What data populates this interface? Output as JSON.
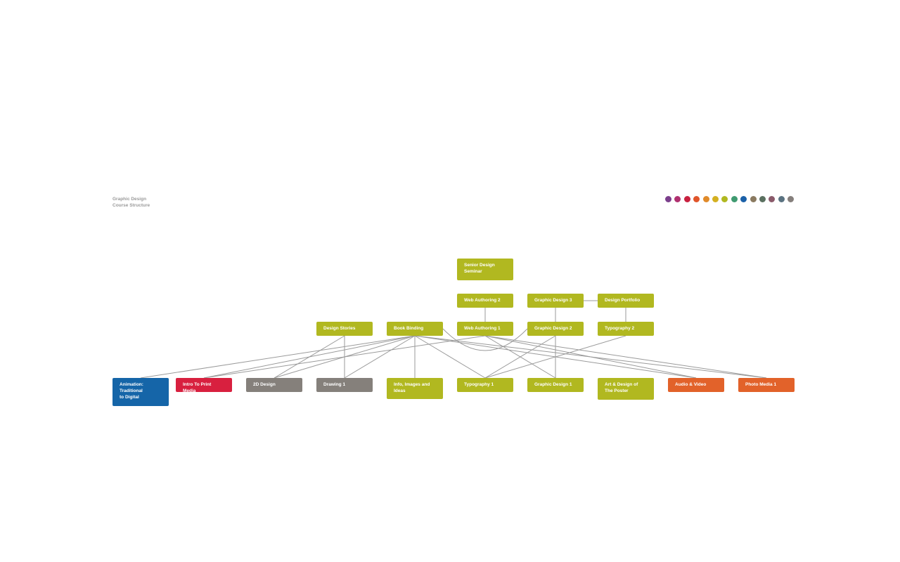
{
  "header": {
    "title_line1": "Graphic Design",
    "title_line2": "Course Structure"
  },
  "palette": [
    "#7b3f8c",
    "#b0306f",
    "#c8203f",
    "#e0552a",
    "#e08a2a",
    "#d4b020",
    "#b0b820",
    "#3f9a70",
    "#1a60a8",
    "#8a7a60",
    "#5a7060",
    "#8a5a6a",
    "#5a7280",
    "#857f7c"
  ],
  "colors": {
    "green": "#b1b820",
    "blue": "#1565a8",
    "red": "#d8203f",
    "gray": "#85807b",
    "orange": "#e2622a",
    "edge": "#9a9a9a"
  },
  "courses": {
    "senior_design_seminar": "Senior Design\nSeminar",
    "web_authoring_2": "Web Authoring 2",
    "graphic_design_3": "Graphic Design 3",
    "design_portfolio": "Design Portfolio",
    "design_stories": "Design Stories",
    "book_binding": "Book Binding",
    "web_authoring_1": "Web Authoring 1",
    "graphic_design_2": "Graphic Design 2",
    "typography_2": "Typography 2",
    "animation": "Animation:\nTraditional\nto Digital",
    "intro_print_media": "Intro To Print Media",
    "design_2d": "2D Design",
    "drawing_1": "Drawing 1",
    "info_images_ideas": "Info, Images and\nIdeas",
    "typography_1": "Typography 1",
    "graphic_design_1": "Graphic Design 1",
    "art_design_poster": "Art & Design of\nThe Poster",
    "audio_video": "Audio & Video",
    "photo_media_1": "Photo Media 1"
  },
  "edges": [
    [
      "design_stories",
      "design_2d"
    ],
    [
      "design_stories",
      "drawing_1"
    ],
    [
      "book_binding",
      "animation"
    ],
    [
      "book_binding",
      "intro_print_media"
    ],
    [
      "book_binding",
      "design_2d"
    ],
    [
      "book_binding",
      "drawing_1"
    ],
    [
      "book_binding",
      "info_images_ideas"
    ],
    [
      "book_binding",
      "typography_1"
    ],
    [
      "book_binding",
      "audio_video"
    ],
    [
      "book_binding",
      "photo_media_1"
    ],
    [
      "book_binding",
      "graphic_design_2"
    ],
    [
      "web_authoring_1",
      "intro_print_media"
    ],
    [
      "web_authoring_1",
      "graphic_design_1"
    ],
    [
      "web_authoring_1",
      "audio_video"
    ],
    [
      "web_authoring_1",
      "photo_media_1"
    ],
    [
      "web_authoring_1",
      "web_authoring_2"
    ],
    [
      "graphic_design_2",
      "typography_1"
    ],
    [
      "graphic_design_2",
      "graphic_design_1"
    ],
    [
      "graphic_design_2",
      "graphic_design_3"
    ],
    [
      "typography_2",
      "typography_1"
    ],
    [
      "typography_2",
      "design_portfolio"
    ],
    [
      "graphic_design_3",
      "design_portfolio"
    ]
  ]
}
